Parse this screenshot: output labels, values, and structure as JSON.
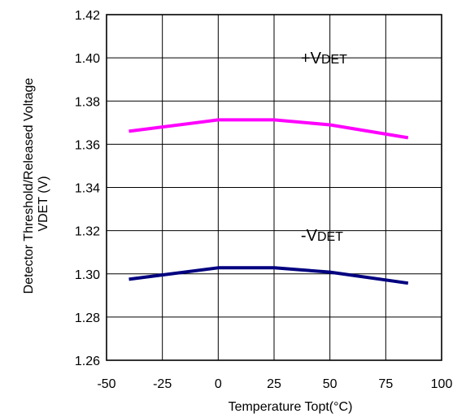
{
  "chart_data": {
    "type": "line",
    "xlabel": "Temperature Topt(°C)",
    "ylabel_lines": [
      "Detector Threshold/Released Voltage",
      "VDET (V)"
    ],
    "xlim": [
      -50,
      100
    ],
    "ylim": [
      1.26,
      1.42
    ],
    "xticks": [
      -50,
      -25,
      0,
      25,
      50,
      75,
      100
    ],
    "yticks": [
      "1.26",
      "1.28",
      "1.30",
      "1.32",
      "1.34",
      "1.36",
      "1.38",
      "1.40",
      "1.42"
    ],
    "grid": true,
    "series": [
      {
        "color": "#ff00ff",
        "x": [
          -40,
          0,
          25,
          50,
          85
        ],
        "y": [
          1.366,
          1.3713,
          1.3713,
          1.369,
          1.363
        ]
      },
      {
        "color": "#000080",
        "x": [
          -40,
          0,
          25,
          50,
          85
        ],
        "y": [
          1.2975,
          1.3028,
          1.3028,
          1.3008,
          1.2957
        ]
      }
    ],
    "annotations": [
      {
        "sign": "+",
        "main": "V",
        "sub": "DET",
        "x": 45,
        "y": 1.4
      },
      {
        "sign": "-",
        "main": "V",
        "sub": "DET",
        "x": 45,
        "y": 1.318
      }
    ]
  }
}
